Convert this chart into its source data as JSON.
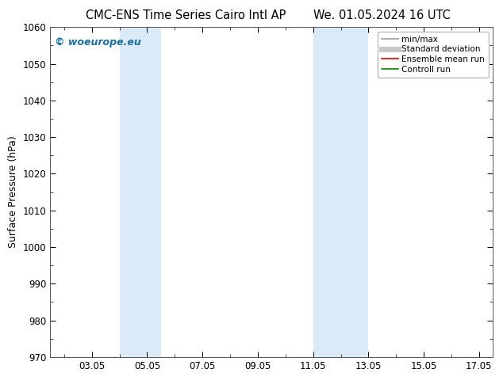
{
  "title_left": "CMC-ENS Time Series Cairo Intl AP",
  "title_right": "We. 01.05.2024 16 UTC",
  "ylabel": "Surface Pressure (hPa)",
  "ylim": [
    970,
    1060
  ],
  "yticks": [
    970,
    980,
    990,
    1000,
    1010,
    1020,
    1030,
    1040,
    1050,
    1060
  ],
  "xlim": [
    1.5,
    17.5
  ],
  "xtick_labels": [
    "03.05",
    "05.05",
    "07.05",
    "09.05",
    "11.05",
    "13.05",
    "15.05",
    "17.05"
  ],
  "xtick_positions": [
    3,
    5,
    7,
    9,
    11,
    13,
    15,
    17
  ],
  "shaded_bands": [
    {
      "x_start": 4.0,
      "x_end": 5.5,
      "color": "#daeaf7"
    },
    {
      "x_start": 11.0,
      "x_end": 13.0,
      "color": "#daeaf7"
    }
  ],
  "legend_items": [
    {
      "label": "min/max",
      "color": "#b0b0b0",
      "lw": 1.5,
      "ls": "-"
    },
    {
      "label": "Standard deviation",
      "color": "#c8c8c8",
      "lw": 5,
      "ls": "-"
    },
    {
      "label": "Ensemble mean run",
      "color": "#dd0000",
      "lw": 1.2,
      "ls": "-"
    },
    {
      "label": "Controll run",
      "color": "#008800",
      "lw": 1.2,
      "ls": "-"
    }
  ],
  "watermark": "© woeurope.eu",
  "watermark_color": "#1a6fa0",
  "bg_color": "#ffffff",
  "plot_bg_color": "#ffffff",
  "border_color": "#555555",
  "title_fontsize": 10.5,
  "label_fontsize": 9,
  "tick_fontsize": 8.5,
  "legend_fontsize": 7.5
}
